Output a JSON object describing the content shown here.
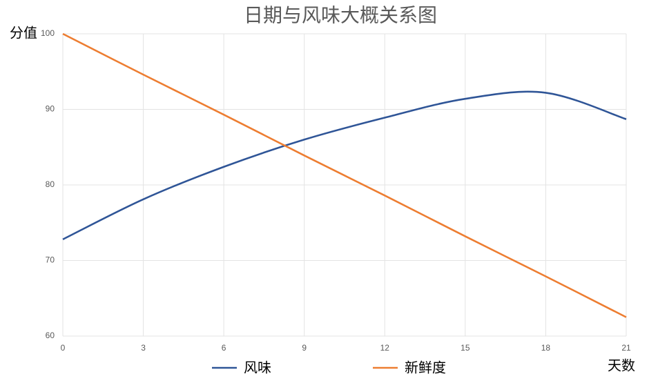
{
  "chart_data": {
    "type": "line",
    "title": "日期与风味大概关系图",
    "x_label": "天数",
    "y_label": "分值",
    "x": [
      0,
      3,
      6,
      9,
      12,
      15,
      18,
      21
    ],
    "series": [
      {
        "name": "风味",
        "color": "#2f5597",
        "values": [
          72.8,
          78.1,
          82.4,
          86.0,
          88.9,
          91.4,
          92.2,
          88.7
        ]
      },
      {
        "name": "新鲜度",
        "color": "#ed7d31",
        "values": [
          100,
          94.6,
          89.3,
          83.9,
          78.6,
          73.2,
          67.9,
          62.5
        ]
      }
    ],
    "xlim": [
      0,
      21
    ],
    "xticks": [
      0,
      3,
      6,
      9,
      12,
      15,
      18,
      21
    ],
    "ylim": [
      60,
      100
    ],
    "yticks": [
      60,
      70,
      80,
      90,
      100
    ],
    "grid": true,
    "smooth": true,
    "legend": "bottom"
  }
}
